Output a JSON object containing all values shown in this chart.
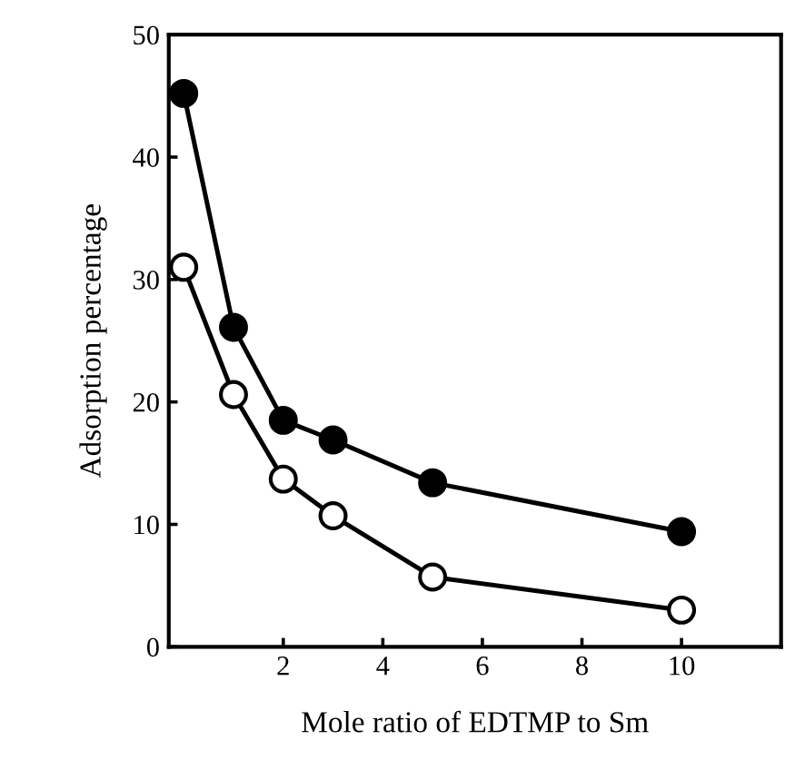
{
  "chart_data": {
    "type": "line",
    "xlabel": "Mole ratio of EDTMP to Sm",
    "ylabel": "Adsorption percentage",
    "x": [
      0,
      1,
      2,
      3,
      5,
      10
    ],
    "series": [
      {
        "color": "#000000",
        "values": [
          45.2,
          26.1,
          18.5,
          16.9,
          13.4,
          9.4
        ],
        "colors": [
          "#000000",
          "#000000",
          "#000000",
          "#000000",
          "#000000",
          "#000000"
        ]
      },
      {
        "color": "#000000",
        "values": [
          31,
          20.6,
          13.7,
          10.7,
          5.7,
          3.0
        ],
        "colors": [
          "#ffffff",
          "#ffffff",
          "#ffffff",
          "#ffffff",
          "#ffffff",
          "#ffffff"
        ]
      }
    ],
    "xlim": [
      -0.3,
      12
    ],
    "ylim": [
      0,
      50
    ],
    "xticks": [
      2,
      4,
      6,
      8,
      10
    ],
    "yticks": [
      0,
      10,
      20,
      30,
      40,
      50
    ],
    "grid": false,
    "legend": false,
    "marker": "circle",
    "line_style": "solid"
  }
}
